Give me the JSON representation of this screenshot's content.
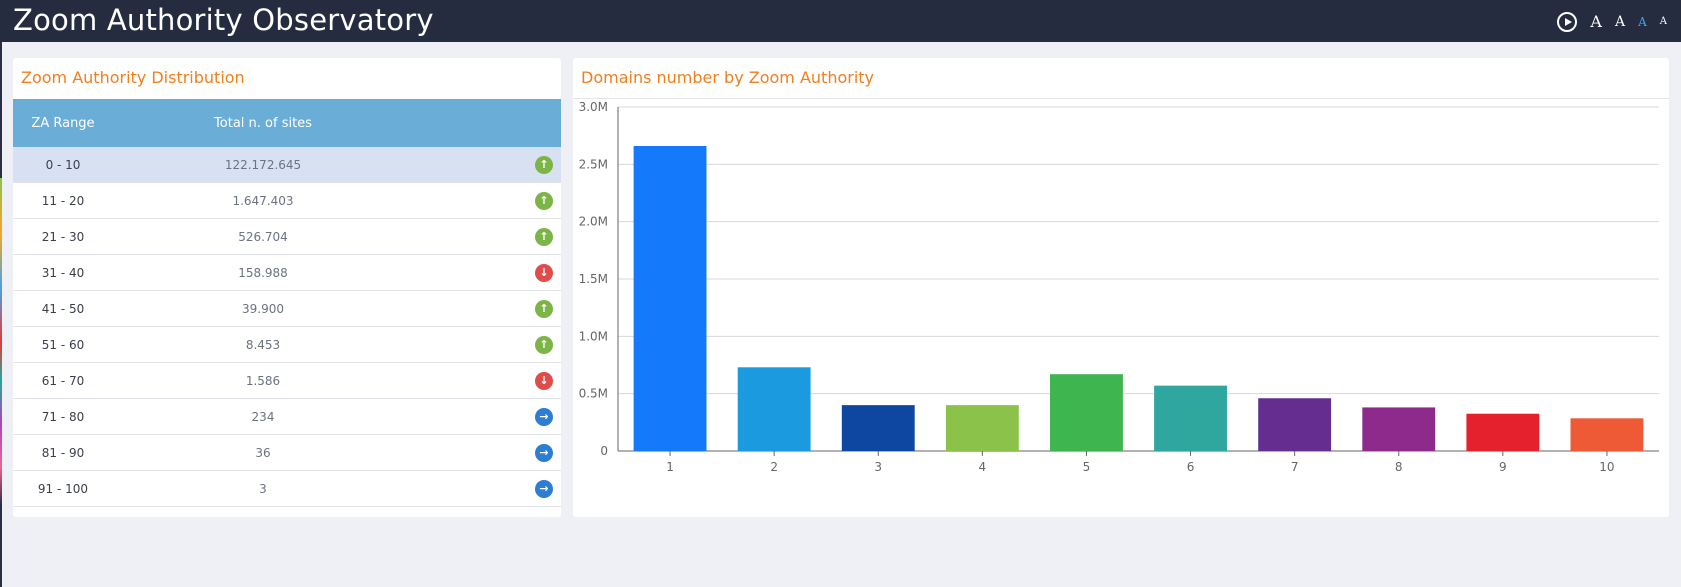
{
  "header": {
    "title": "Zoom Authority Observatory",
    "font_sizes": [
      {
        "label": "A",
        "size": 16,
        "active": false
      },
      {
        "label": "A",
        "size": 14,
        "active": false
      },
      {
        "label": "A",
        "size": 12,
        "active": true
      },
      {
        "label": "A",
        "size": 10,
        "active": false
      }
    ]
  },
  "table_panel": {
    "title": "Zoom Authority Distribution",
    "columns": [
      "ZA Range",
      "Total n. of sites",
      ""
    ],
    "rows": [
      {
        "range": "0 - 10",
        "total": "122.172.645",
        "trend": "up"
      },
      {
        "range": "11 - 20",
        "total": "1.647.403",
        "trend": "up"
      },
      {
        "range": "21 - 30",
        "total": "526.704",
        "trend": "up"
      },
      {
        "range": "31 - 40",
        "total": "158.988",
        "trend": "down"
      },
      {
        "range": "41 - 50",
        "total": "39.900",
        "trend": "up"
      },
      {
        "range": "51 - 60",
        "total": "8.453",
        "trend": "up"
      },
      {
        "range": "61 - 70",
        "total": "1.586",
        "trend": "down"
      },
      {
        "range": "71 - 80",
        "total": "234",
        "trend": "right"
      },
      {
        "range": "81 - 90",
        "total": "36",
        "trend": "right"
      },
      {
        "range": "91 - 100",
        "total": "3",
        "trend": "right"
      }
    ],
    "selected_row": 0
  },
  "chart_panel": {
    "title": "Domains number by Zoom Authority"
  },
  "chart_data": {
    "type": "bar",
    "title": "Domains number by Zoom Authority",
    "categories": [
      "1",
      "2",
      "3",
      "4",
      "5",
      "6",
      "7",
      "8",
      "9",
      "10"
    ],
    "values": [
      2660000,
      730000,
      400000,
      400000,
      670000,
      570000,
      460000,
      380000,
      325000,
      285000
    ],
    "colors": [
      "#1479fa",
      "#1b9adf",
      "#0d47a1",
      "#8bc34a",
      "#3fb54f",
      "#2fa79f",
      "#652d90",
      "#8e2a8c",
      "#e5212e",
      "#ee5a36"
    ],
    "ylim": [
      0,
      3000000
    ],
    "yticks": [
      0,
      500000,
      1000000,
      1500000,
      2000000,
      2500000,
      3000000
    ],
    "ytick_labels": [
      "0",
      "0.5M",
      "1.0M",
      "1.5M",
      "2.0M",
      "2.5M",
      "3.0M"
    ],
    "xlabel": "",
    "ylabel": "",
    "grid": true
  }
}
